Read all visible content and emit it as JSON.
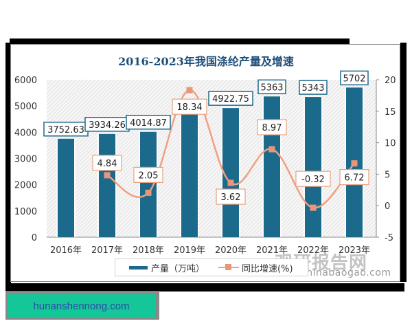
{
  "chart_data": {
    "type": "bar+line",
    "title": "2016-2023年我国涤纶产量及增速",
    "categories": [
      "2016年",
      "2017年",
      "2018年",
      "2019年",
      "2020年",
      "2021年",
      "2022年",
      "2023年"
    ],
    "series": [
      {
        "name": "产量（万吨）",
        "type": "bar",
        "axis": "left",
        "color": "#1b6a8c",
        "values": [
          3752.63,
          3934.26,
          4014.87,
          4751.0,
          4922.75,
          5363,
          5343,
          5702
        ],
        "labels": [
          "3752.63",
          "3934.26",
          "4014.87",
          "",
          "4922.75",
          "5363",
          "5343",
          "5702"
        ]
      },
      {
        "name": "同比增速(%)",
        "type": "line",
        "axis": "right",
        "color": "#f0a080",
        "values": [
          null,
          4.84,
          2.05,
          18.34,
          3.62,
          8.97,
          -0.32,
          6.72
        ],
        "labels": [
          "",
          "4.84",
          "2.05",
          "18.34",
          "3.62",
          "8.97",
          "-0.32",
          "6.72"
        ]
      }
    ],
    "left_axis": {
      "ticks": [
        "0",
        "1000",
        "2000",
        "3000",
        "4000",
        "5000",
        "6000"
      ],
      "ylim": [
        0,
        6000
      ]
    },
    "right_axis": {
      "ticks": [
        "-5",
        "0",
        "5",
        "10",
        "15",
        "20"
      ],
      "ylim": [
        -5,
        20
      ]
    },
    "grid": false,
    "legend_position": "bottom"
  },
  "legend": {
    "bar_label": "产量（万吨）",
    "line_label": "同比增速(%)"
  },
  "watermark": {
    "logo_text": "观研报告网",
    "url": "chinabaogao.com"
  },
  "site_badge": {
    "text": "hunanshennong.com",
    "bg_color": "#14c798",
    "text_color": "#2c4aa8"
  },
  "colors": {
    "bar": "#1b6a8c",
    "line": "#f0a080",
    "title": "#1f4e79"
  }
}
